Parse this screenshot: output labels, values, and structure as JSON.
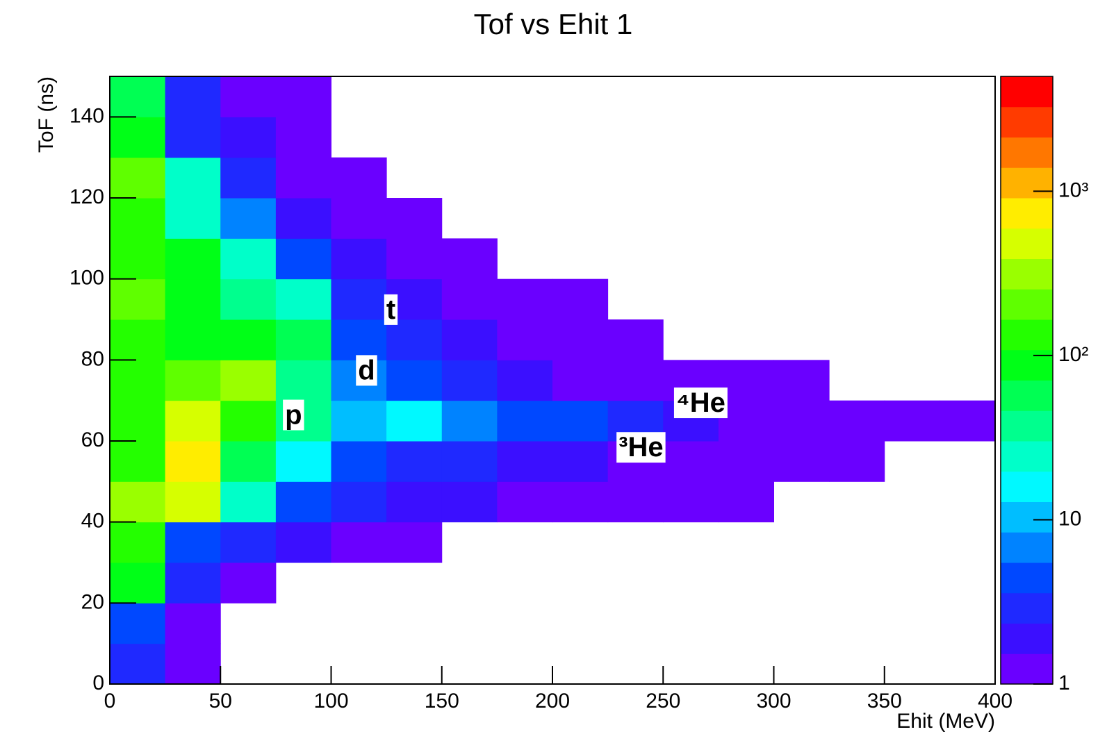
{
  "chart_data": {
    "type": "heatmap",
    "title": "Tof vs Ehit 1",
    "x_label": "Ehit (MeV)",
    "y_label": "ToF (ns)",
    "x_bins": [
      0,
      25,
      50,
      75,
      100,
      125,
      150,
      175,
      200,
      225,
      250,
      275,
      300,
      325,
      350,
      375,
      400
    ],
    "y_bins": [
      0,
      10,
      20,
      30,
      40,
      50,
      60,
      70,
      80,
      90,
      100,
      110,
      120,
      130,
      140,
      150
    ],
    "values": [
      [
        3,
        1,
        0,
        0,
        0,
        0,
        0,
        0,
        0,
        0,
        0,
        0,
        0,
        0,
        0,
        0
      ],
      [
        4,
        1,
        0,
        0,
        0,
        0,
        0,
        0,
        0,
        0,
        0,
        0,
        0,
        0,
        0,
        0
      ],
      [
        100,
        3,
        1,
        0,
        0,
        0,
        0,
        0,
        0,
        0,
        0,
        0,
        0,
        0,
        0,
        0
      ],
      [
        150,
        5,
        3,
        2,
        1,
        1,
        0,
        0,
        0,
        0,
        0,
        0,
        0,
        0,
        0,
        0
      ],
      [
        300,
        500,
        30,
        5,
        3,
        2,
        2,
        1,
        1,
        1,
        1,
        1,
        0,
        0,
        0,
        0
      ],
      [
        150,
        800,
        60,
        15,
        5,
        3,
        3,
        2,
        2,
        1,
        1,
        1,
        1,
        1,
        0,
        0
      ],
      [
        150,
        400,
        150,
        40,
        10,
        15,
        8,
        5,
        4,
        3,
        2,
        1,
        1,
        1,
        1,
        1
      ],
      [
        150,
        200,
        300,
        40,
        8,
        5,
        3,
        2,
        1,
        1,
        1,
        1,
        1,
        0,
        0,
        0
      ],
      [
        150,
        100,
        100,
        60,
        5,
        3,
        2,
        1,
        1,
        1,
        0,
        0,
        0,
        0,
        0,
        0
      ],
      [
        200,
        100,
        40,
        30,
        3,
        2,
        1,
        1,
        1,
        0,
        0,
        0,
        0,
        0,
        0,
        0
      ],
      [
        150,
        100,
        30,
        4,
        2,
        1,
        1,
        0,
        0,
        0,
        0,
        0,
        0,
        0,
        0,
        0
      ],
      [
        150,
        30,
        8,
        2,
        1,
        1,
        0,
        0,
        0,
        0,
        0,
        0,
        0,
        0,
        0,
        0
      ],
      [
        200,
        20,
        3,
        1,
        1,
        0,
        0,
        0,
        0,
        0,
        0,
        0,
        0,
        0,
        0,
        0
      ],
      [
        100,
        3,
        2,
        1,
        0,
        0,
        0,
        0,
        0,
        0,
        0,
        0,
        0,
        0,
        0,
        0
      ],
      [
        60,
        3,
        1,
        1,
        0,
        0,
        0,
        0,
        0,
        0,
        0,
        0,
        0,
        0,
        0,
        0
      ]
    ],
    "xlim": [
      0,
      400
    ],
    "ylim": [
      0,
      150
    ],
    "xticks": [
      0,
      50,
      100,
      150,
      200,
      250,
      300,
      350,
      400
    ],
    "yticks": [
      0,
      20,
      40,
      60,
      80,
      100,
      120,
      140
    ],
    "zlim": [
      1,
      5000
    ],
    "zlog": true,
    "zticks": [
      1,
      10,
      {
        "value": 100,
        "label": "10²"
      },
      {
        "value": 1000,
        "label": "10³"
      }
    ],
    "annotations": [
      {
        "text": "t",
        "x": 127,
        "y": 92
      },
      {
        "text": "d",
        "x": 116,
        "y": 77
      },
      {
        "text": "p",
        "x": 83,
        "y": 66
      },
      {
        "text": "⁴He",
        "x": 267,
        "y": 69
      },
      {
        "text": "³He",
        "x": 240,
        "y": 58
      }
    ]
  }
}
